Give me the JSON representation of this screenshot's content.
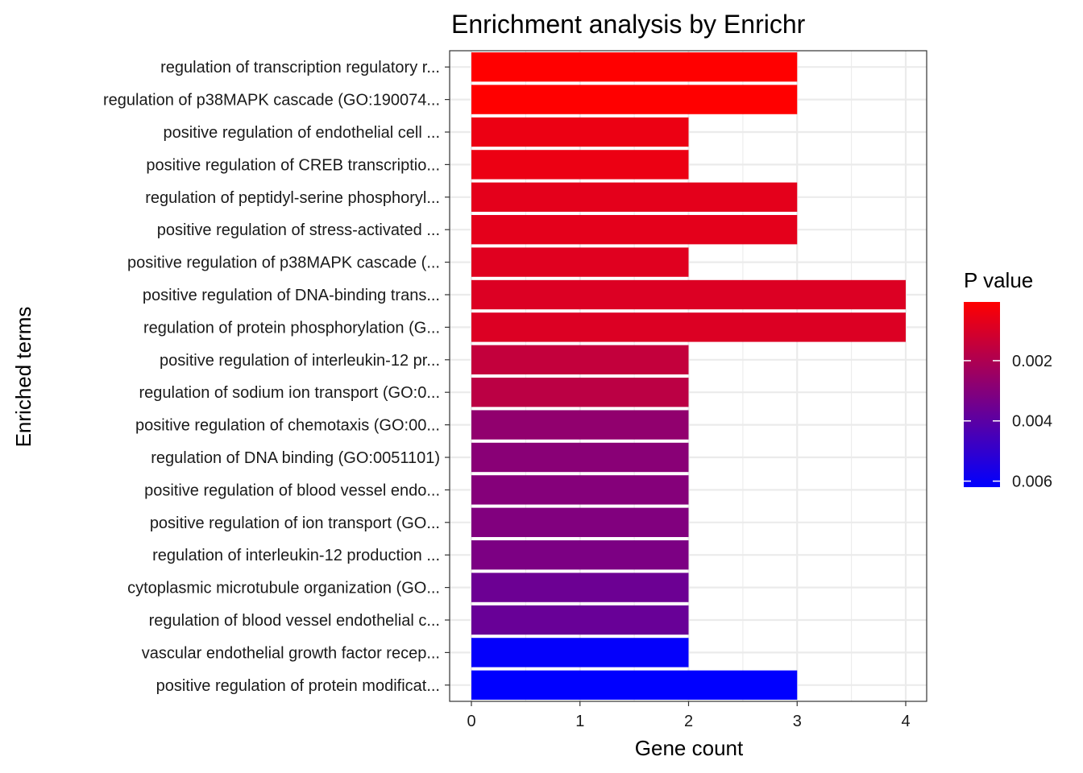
{
  "chart_data": {
    "type": "bar",
    "orientation": "horizontal",
    "title": "Enrichment analysis by Enrichr",
    "xlabel": "Gene count",
    "ylabel": "Enriched terms",
    "xlim": [
      -0.2,
      4.2
    ],
    "xticks": [
      "0",
      "1",
      "2",
      "3",
      "4"
    ],
    "grid": true,
    "categories": [
      "regulation of transcription regulatory r...",
      "regulation of p38MAPK cascade (GO:190074...",
      "positive regulation of endothelial cell ...",
      "positive regulation of CREB transcriptio...",
      "regulation of peptidyl-serine phosphoryl...",
      "positive regulation of stress-activated ...",
      "positive regulation of p38MAPK cascade (...",
      "positive regulation of DNA-binding trans...",
      "regulation of protein phosphorylation (G...",
      "positive regulation of interleukin-12 pr...",
      "regulation of sodium ion transport (GO:0...",
      "positive regulation of chemotaxis (GO:00...",
      "regulation of DNA binding (GO:0051101)",
      "positive regulation of blood vessel endo...",
      "positive regulation of ion transport (GO...",
      "regulation of interleukin-12 production ...",
      "cytoplasmic microtubule organization (GO...",
      "regulation of blood vessel endothelial c...",
      "vascular endothelial growth factor recep...",
      "positive regulation of protein modificat..."
    ],
    "values": [
      3,
      3,
      2,
      2,
      3,
      3,
      2,
      4,
      4,
      2,
      2,
      2,
      2,
      2,
      2,
      2,
      2,
      2,
      2,
      3
    ],
    "p_values": [
      5e-05,
      5e-05,
      0.0005,
      0.0005,
      0.0007,
      0.0007,
      0.0008,
      0.0009,
      0.0009,
      0.0015,
      0.0017,
      0.0027,
      0.0029,
      0.003,
      0.0031,
      0.0032,
      0.0036,
      0.0037,
      0.0061,
      0.0062
    ],
    "legend": {
      "title": "P value",
      "position": "right",
      "range": [
        5e-05,
        0.0062
      ],
      "ticks": [
        "0.002",
        "0.004",
        "0.006"
      ],
      "tick_values": [
        0.002,
        0.004,
        0.006
      ],
      "color_low": "#FF0000",
      "color_high": "#0000FF"
    }
  }
}
